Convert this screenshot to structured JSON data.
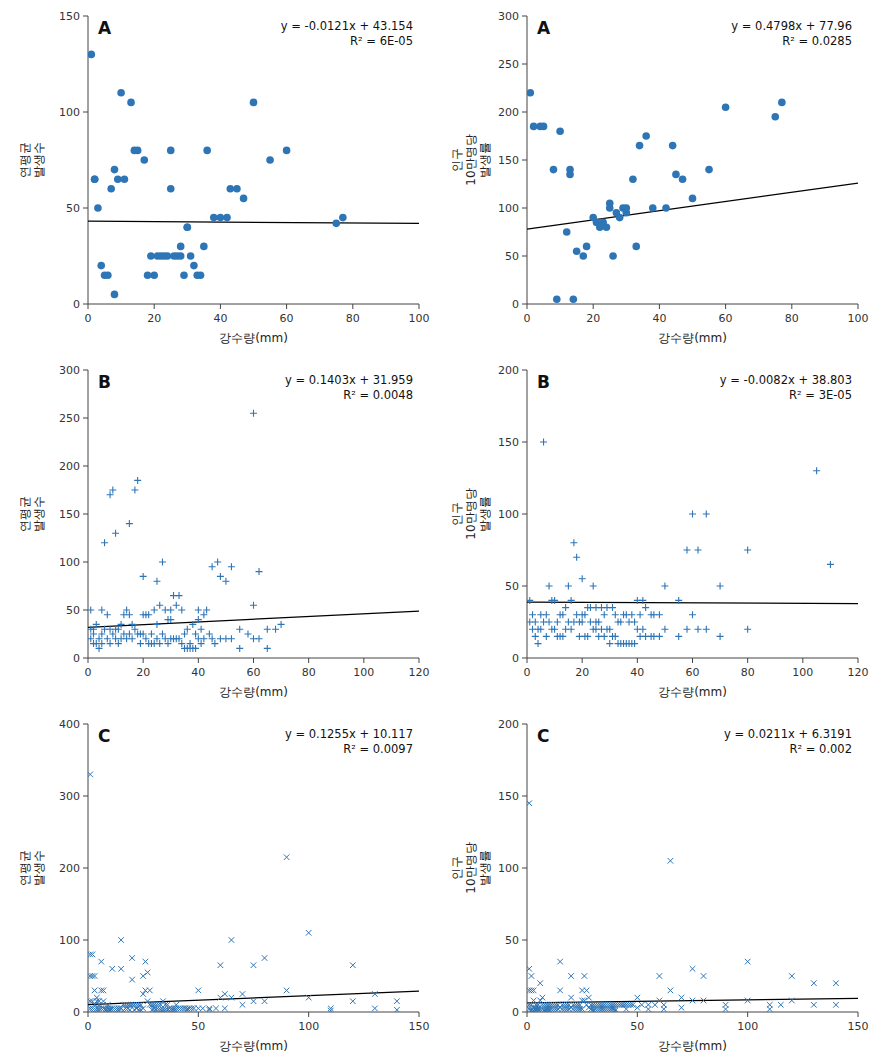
{
  "chart_data": [
    {
      "type": "scatter",
      "title": "A",
      "annotations": [
        "y = -0.0121x + 43.154",
        "R² = 6E-05"
      ],
      "xlabel": "강수량(mm)",
      "ylabel": "연평균\n발생수",
      "xlim": [
        0,
        100
      ],
      "ylim": [
        0,
        150
      ],
      "xticks": [
        0,
        20,
        40,
        60,
        80,
        100
      ],
      "yticks": [
        0,
        50,
        100,
        150
      ],
      "grid": false,
      "marker": "o",
      "color": "#2e75b6",
      "trend_line": {
        "slope": -0.0121,
        "intercept": 43.154,
        "color": "black"
      },
      "x": [
        1,
        2,
        2,
        3,
        4,
        5,
        6,
        7,
        8,
        8,
        9,
        10,
        11,
        13,
        14,
        15,
        17,
        18,
        19,
        20,
        21,
        22,
        23,
        24,
        25,
        25,
        26,
        27,
        28,
        28,
        29,
        30,
        30,
        31,
        32,
        33,
        34,
        35,
        36,
        38,
        40,
        42,
        43,
        45,
        47,
        50,
        55,
        60,
        75,
        77
      ],
      "values": [
        130,
        65,
        65,
        50,
        20,
        15,
        15,
        60,
        5,
        70,
        65,
        110,
        65,
        105,
        80,
        80,
        75,
        15,
        25,
        15,
        25,
        25,
        25,
        25,
        80,
        60,
        25,
        25,
        25,
        30,
        15,
        40,
        40,
        25,
        20,
        15,
        15,
        30,
        80,
        45,
        45,
        45,
        60,
        60,
        55,
        105,
        75,
        80,
        42,
        45
      ]
    },
    {
      "type": "scatter",
      "title": "A",
      "annotations": [
        "y = 0.4798x + 77.96",
        "R² = 0.0285"
      ],
      "xlabel": "강수량(mm)",
      "ylabel": "인구\n10만명당\n발생률",
      "xlim": [
        0,
        100
      ],
      "ylim": [
        0,
        300
      ],
      "xticks": [
        0,
        20,
        40,
        60,
        80,
        100
      ],
      "yticks": [
        0,
        50,
        100,
        150,
        200,
        250,
        300
      ],
      "grid": false,
      "marker": "o",
      "color": "#2e75b6",
      "trend_line": {
        "slope": 0.4798,
        "intercept": 77.96,
        "color": "black"
      },
      "x": [
        1,
        2,
        4,
        5,
        8,
        9,
        10,
        12,
        13,
        13,
        14,
        15,
        17,
        18,
        20,
        21,
        22,
        23,
        24,
        25,
        25,
        26,
        27,
        28,
        29,
        30,
        30,
        32,
        33,
        34,
        36,
        38,
        42,
        44,
        45,
        47,
        50,
        55,
        60,
        75,
        77
      ],
      "values": [
        220,
        185,
        185,
        185,
        140,
        5,
        180,
        75,
        135,
        140,
        5,
        55,
        50,
        60,
        90,
        85,
        80,
        85,
        80,
        100,
        105,
        50,
        95,
        90,
        100,
        100,
        95,
        130,
        60,
        165,
        175,
        100,
        100,
        165,
        135,
        130,
        110,
        140,
        205,
        195,
        210
      ]
    },
    {
      "type": "scatter",
      "title": "B",
      "annotations": [
        "y = 0.1403x + 31.959",
        "R² = 0.0048"
      ],
      "xlabel": "강수량(mm)",
      "ylabel": "연평균\n발생수",
      "xlim": [
        0,
        120
      ],
      "ylim": [
        0,
        300
      ],
      "xticks": [
        0,
        20,
        40,
        60,
        80,
        100,
        120
      ],
      "yticks": [
        0,
        50,
        100,
        150,
        200,
        250,
        300
      ],
      "grid": false,
      "marker": "+",
      "color": "#2e75b6",
      "trend_line": {
        "slope": 0.1403,
        "intercept": 31.959,
        "color": "black"
      },
      "x": [
        1,
        1,
        1,
        2,
        2,
        2,
        3,
        3,
        4,
        4,
        5,
        5,
        5,
        6,
        6,
        7,
        7,
        8,
        8,
        8,
        9,
        9,
        10,
        10,
        10,
        11,
        11,
        12,
        12,
        13,
        13,
        14,
        14,
        15,
        15,
        15,
        16,
        16,
        17,
        17,
        18,
        18,
        19,
        19,
        20,
        20,
        20,
        21,
        21,
        22,
        22,
        23,
        23,
        24,
        24,
        25,
        25,
        25,
        26,
        26,
        27,
        27,
        28,
        28,
        29,
        29,
        30,
        30,
        30,
        31,
        31,
        32,
        32,
        33,
        33,
        34,
        34,
        35,
        35,
        36,
        36,
        37,
        37,
        38,
        38,
        39,
        39,
        40,
        40,
        40,
        41,
        41,
        42,
        42,
        43,
        44,
        45,
        45,
        46,
        47,
        48,
        48,
        50,
        50,
        52,
        52,
        55,
        55,
        58,
        60,
        60,
        60,
        62,
        62,
        65,
        65,
        68,
        70
      ],
      "values": [
        50,
        30,
        20,
        30,
        25,
        15,
        35,
        15,
        20,
        10,
        50,
        25,
        15,
        120,
        30,
        45,
        20,
        170,
        30,
        15,
        175,
        25,
        130,
        30,
        20,
        30,
        15,
        35,
        20,
        45,
        25,
        50,
        20,
        140,
        45,
        25,
        35,
        20,
        175,
        30,
        185,
        25,
        25,
        15,
        85,
        45,
        25,
        45,
        20,
        45,
        15,
        25,
        15,
        50,
        15,
        80,
        35,
        20,
        55,
        15,
        100,
        25,
        50,
        20,
        40,
        15,
        40,
        50,
        20,
        65,
        20,
        55,
        20,
        65,
        20,
        50,
        15,
        25,
        10,
        30,
        10,
        15,
        10,
        35,
        10,
        25,
        10,
        50,
        40,
        20,
        30,
        15,
        45,
        20,
        50,
        25,
        95,
        20,
        15,
        100,
        85,
        20,
        80,
        20,
        95,
        20,
        30,
        10,
        25,
        255,
        55,
        20,
        90,
        20,
        30,
        10,
        30,
        35
      ]
    },
    {
      "type": "scatter",
      "title": "B",
      "annotations": [
        "y = -0.0082x + 38.803",
        "R² = 3E-05"
      ],
      "xlabel": "강수량(mm)",
      "ylabel": "인구\n10만명당\n발생률",
      "xlim": [
        0,
        120
      ],
      "ylim": [
        0,
        200
      ],
      "xticks": [
        0,
        20,
        40,
        60,
        80,
        100,
        120
      ],
      "yticks": [
        0,
        50,
        100,
        150,
        200
      ],
      "grid": false,
      "marker": "+",
      "color": "#2e75b6",
      "trend_line": {
        "slope": -0.0082,
        "intercept": 38.803,
        "color": "black"
      },
      "x": [
        1,
        1,
        2,
        2,
        3,
        3,
        4,
        4,
        5,
        5,
        6,
        6,
        7,
        7,
        8,
        8,
        9,
        9,
        10,
        10,
        11,
        11,
        12,
        12,
        13,
        13,
        14,
        14,
        15,
        15,
        16,
        16,
        17,
        17,
        18,
        18,
        19,
        19,
        20,
        20,
        20,
        21,
        21,
        22,
        22,
        23,
        23,
        24,
        24,
        25,
        25,
        25,
        26,
        26,
        27,
        27,
        28,
        28,
        29,
        29,
        30,
        30,
        31,
        31,
        32,
        32,
        33,
        33,
        34,
        34,
        35,
        35,
        36,
        36,
        37,
        37,
        38,
        38,
        39,
        39,
        40,
        40,
        41,
        41,
        42,
        42,
        43,
        43,
        45,
        45,
        46,
        46,
        48,
        48,
        50,
        50,
        55,
        55,
        58,
        58,
        60,
        60,
        62,
        62,
        65,
        65,
        70,
        70,
        80,
        80,
        105,
        110
      ],
      "values": [
        40,
        25,
        30,
        20,
        25,
        15,
        20,
        10,
        30,
        20,
        150,
        25,
        30,
        15,
        50,
        25,
        40,
        20,
        40,
        20,
        25,
        15,
        30,
        15,
        30,
        15,
        35,
        20,
        50,
        25,
        40,
        20,
        80,
        25,
        70,
        30,
        25,
        15,
        55,
        25,
        30,
        15,
        30,
        15,
        35,
        25,
        35,
        20,
        50,
        35,
        25,
        20,
        25,
        15,
        35,
        20,
        30,
        15,
        35,
        20,
        20,
        10,
        35,
        15,
        30,
        15,
        25,
        10,
        25,
        10,
        30,
        10,
        30,
        10,
        25,
        10,
        30,
        10,
        25,
        10,
        40,
        20,
        30,
        15,
        40,
        20,
        35,
        15,
        30,
        15,
        30,
        15,
        30,
        15,
        50,
        20,
        40,
        15,
        75,
        20,
        100,
        30,
        75,
        20,
        100,
        20,
        50,
        15,
        75,
        20,
        130,
        65
      ]
    },
    {
      "type": "scatter",
      "title": "C",
      "annotations": [
        "y = 0.1255x + 10.117",
        "R² = 0.0097"
      ],
      "xlabel": "강수량(mm)",
      "ylabel": "연평균\n발생수",
      "xlim": [
        0,
        150
      ],
      "ylim": [
        0,
        400
      ],
      "xticks": [
        0,
        50,
        100,
        150
      ],
      "yticks": [
        0,
        100,
        200,
        300,
        400
      ],
      "grid": false,
      "marker": "x",
      "color": "#2e75b6",
      "trend_line": {
        "slope": 0.1255,
        "intercept": 10.117,
        "color": "black"
      },
      "x": [
        1,
        1,
        1,
        1,
        1,
        2,
        2,
        2,
        2,
        2,
        3,
        3,
        3,
        3,
        4,
        4,
        4,
        4,
        5,
        5,
        5,
        5,
        6,
        6,
        6,
        7,
        7,
        7,
        8,
        8,
        8,
        9,
        9,
        9,
        10,
        10,
        10,
        11,
        11,
        12,
        12,
        13,
        13,
        14,
        14,
        15,
        15,
        15,
        16,
        16,
        17,
        17,
        18,
        18,
        19,
        19,
        20,
        20,
        20,
        21,
        21,
        22,
        22,
        23,
        23,
        24,
        24,
        25,
        25,
        25,
        26,
        26,
        27,
        27,
        28,
        28,
        29,
        29,
        30,
        30,
        30,
        31,
        31,
        32,
        32,
        33,
        33,
        34,
        34,
        35,
        35,
        36,
        36,
        37,
        37,
        38,
        38,
        39,
        39,
        40,
        40,
        40,
        41,
        42,
        43,
        44,
        45,
        45,
        46,
        47,
        48,
        50,
        50,
        52,
        55,
        55,
        58,
        60,
        60,
        62,
        62,
        65,
        65,
        70,
        70,
        75,
        75,
        80,
        80,
        90,
        90,
        100,
        100,
        110,
        110,
        120,
        120,
        130,
        130,
        140,
        140
      ],
      "values": [
        330,
        80,
        50,
        15,
        5,
        80,
        50,
        15,
        5,
        2,
        50,
        30,
        10,
        2,
        20,
        15,
        5,
        2,
        15,
        10,
        5,
        2,
        70,
        30,
        5,
        30,
        15,
        5,
        5,
        3,
        2,
        10,
        5,
        2,
        5,
        3,
        2,
        60,
        5,
        5,
        2,
        5,
        2,
        5,
        2,
        100,
        60,
        5,
        10,
        2,
        10,
        5,
        10,
        5,
        10,
        3,
        75,
        45,
        10,
        10,
        3,
        10,
        5,
        10,
        3,
        10,
        3,
        50,
        25,
        5,
        70,
        30,
        55,
        15,
        30,
        10,
        10,
        3,
        10,
        5,
        2,
        10,
        3,
        10,
        3,
        10,
        3,
        15,
        3,
        10,
        3,
        10,
        3,
        5,
        2,
        5,
        2,
        5,
        2,
        10,
        5,
        2,
        5,
        5,
        5,
        5,
        5,
        3,
        5,
        5,
        5,
        30,
        5,
        5,
        5,
        3,
        5,
        65,
        20,
        25,
        5,
        100,
        20,
        25,
        10,
        65,
        15,
        75,
        15,
        215,
        30,
        110,
        20,
        5,
        2,
        65,
        15,
        25,
        5,
        15,
        3
      ]
    },
    {
      "type": "scatter",
      "title": "C",
      "annotations": [
        "y = 0.0211x + 6.3191",
        "R² = 0.002"
      ],
      "xlabel": "강수량(mm)",
      "ylabel": "인구\n10만명당\n발생률",
      "xlim": [
        0,
        150
      ],
      "ylim": [
        0,
        200
      ],
      "xticks": [
        0,
        50,
        100,
        150
      ],
      "yticks": [
        0,
        50,
        100,
        150,
        200
      ],
      "grid": false,
      "marker": "x",
      "color": "#2e75b6",
      "trend_line": {
        "slope": 0.0211,
        "intercept": 6.3191,
        "color": "black"
      },
      "x": [
        1,
        1,
        1,
        1,
        1,
        2,
        2,
        2,
        2,
        2,
        3,
        3,
        3,
        3,
        4,
        4,
        4,
        4,
        5,
        5,
        5,
        5,
        6,
        6,
        6,
        7,
        7,
        7,
        8,
        8,
        8,
        9,
        9,
        9,
        10,
        10,
        10,
        11,
        11,
        12,
        12,
        13,
        13,
        14,
        14,
        15,
        15,
        15,
        16,
        16,
        17,
        17,
        18,
        18,
        19,
        19,
        20,
        20,
        20,
        21,
        21,
        22,
        22,
        23,
        23,
        24,
        24,
        25,
        25,
        25,
        26,
        26,
        27,
        27,
        28,
        28,
        29,
        29,
        30,
        30,
        30,
        31,
        31,
        32,
        32,
        33,
        33,
        34,
        34,
        35,
        35,
        36,
        36,
        37,
        37,
        38,
        38,
        39,
        39,
        40,
        40,
        40,
        41,
        42,
        43,
        44,
        45,
        45,
        46,
        47,
        48,
        50,
        50,
        52,
        55,
        55,
        58,
        60,
        60,
        62,
        62,
        65,
        65,
        70,
        70,
        75,
        75,
        80,
        80,
        90,
        90,
        100,
        100,
        110,
        110,
        115,
        120,
        120,
        130,
        130,
        140,
        140
      ],
      "values": [
        145,
        30,
        15,
        5,
        2,
        25,
        15,
        5,
        2,
        1,
        15,
        8,
        3,
        1,
        5,
        3,
        2,
        1,
        5,
        3,
        2,
        1,
        20,
        8,
        2,
        10,
        5,
        2,
        5,
        2,
        1,
        5,
        2,
        1,
        5,
        2,
        1,
        5,
        2,
        5,
        2,
        5,
        2,
        5,
        2,
        35,
        15,
        3,
        5,
        2,
        5,
        2,
        5,
        2,
        5,
        2,
        25,
        10,
        3,
        5,
        2,
        5,
        2,
        5,
        2,
        5,
        2,
        15,
        8,
        2,
        25,
        8,
        15,
        5,
        10,
        3,
        5,
        2,
        5,
        2,
        1,
        5,
        2,
        5,
        2,
        5,
        2,
        5,
        2,
        5,
        2,
        5,
        2,
        5,
        2,
        5,
        2,
        5,
        2,
        5,
        2,
        1,
        5,
        5,
        5,
        5,
        5,
        2,
        5,
        5,
        5,
        10,
        3,
        5,
        5,
        2,
        5,
        25,
        8,
        5,
        2,
        105,
        15,
        10,
        3,
        30,
        8,
        25,
        8,
        5,
        2,
        35,
        8,
        5,
        2,
        5,
        25,
        8,
        20,
        5,
        20,
        5
      ]
    }
  ]
}
